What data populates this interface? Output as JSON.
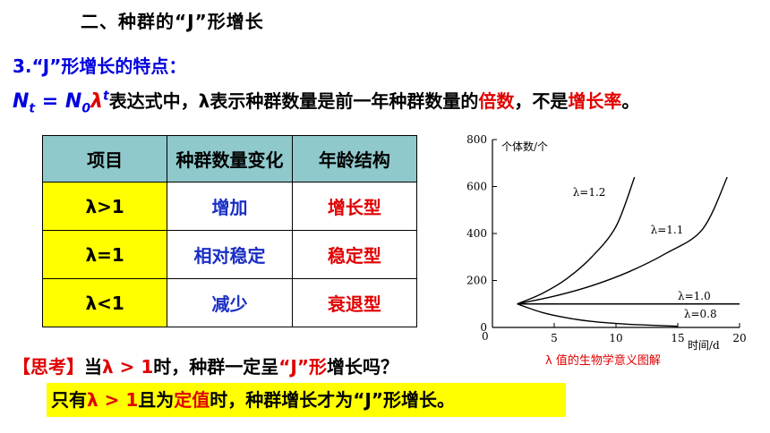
{
  "heading": "二、种群的“J”形增长",
  "point_title": "3.“J”形增长的特点：",
  "formula": {
    "n": "N",
    "t_sub": "t",
    "eq": " = ",
    "n0": "N",
    "zero_sub": "0",
    "lambda": "λ",
    "t_sup": "t",
    "text_a": "表达式中，λ表示种群数量是前一年种群数量的",
    "highlight_a": "倍数",
    "text_b": "，不是",
    "highlight_b": "增长率",
    "text_c": "。"
  },
  "table": {
    "headers": [
      "项目",
      "种群数量变化",
      "年龄结构"
    ],
    "rows": [
      {
        "lambda": "λ>1",
        "change": "增加",
        "age": "增长型"
      },
      {
        "lambda": "λ=1",
        "change": "相对稳定",
        "age": "稳定型"
      },
      {
        "lambda": "λ<1",
        "change": "减少",
        "age": "衰退型"
      }
    ]
  },
  "think": {
    "open": "【",
    "label": "思考",
    "close": "】",
    "text_a": "当",
    "cond": "λ > 1",
    "text_b": "时，种群一定呈",
    "jshape": "“J”形",
    "text_c": "增长吗？"
  },
  "answer": {
    "text_a": "只有",
    "cond": "λ > 1",
    "text_b": "且为",
    "fixed": "定值",
    "text_c": "时，种群增长才为“J”形增长。"
  },
  "chart_data": {
    "type": "line",
    "ylabel": "个体数/个",
    "xlabel": "时间/d",
    "xlim": [
      0,
      20
    ],
    "ylim": [
      0,
      800
    ],
    "x_ticks": [
      0,
      5,
      10,
      15,
      20
    ],
    "y_ticks": [
      0,
      200,
      400,
      600,
      800
    ],
    "x_tick_labels": [
      "0",
      "5",
      "10",
      "15",
      "20"
    ],
    "y_tick_labels": [
      "0",
      "200",
      "400",
      "600",
      "800"
    ],
    "series": [
      {
        "name": "λ=1.2",
        "x": [
          2,
          4,
          6,
          8,
          10,
          11.5
        ],
        "y": [
          100,
          144,
          207,
          298,
          430,
          640
        ]
      },
      {
        "name": "λ=1.1",
        "x": [
          2,
          5,
          8,
          11,
          14,
          17,
          19
        ],
        "y": [
          100,
          133,
          177,
          236,
          314,
          418,
          640
        ]
      },
      {
        "name": "λ=1.0",
        "x": [
          2,
          20
        ],
        "y": [
          100,
          100
        ]
      },
      {
        "name": "λ=0.8",
        "x": [
          2,
          4,
          6,
          8,
          10,
          12,
          15
        ],
        "y": [
          100,
          64,
          41,
          26,
          17,
          11,
          5
        ]
      }
    ],
    "caption": "λ 值的生物学意义图解"
  }
}
